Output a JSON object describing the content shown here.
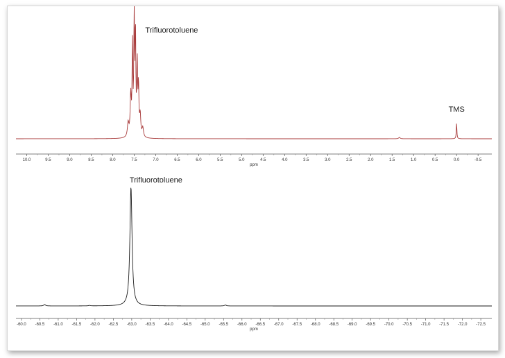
{
  "chart_data": [
    {
      "type": "line",
      "xlabel": "ppm",
      "xlim": [
        10.25,
        -0.82
      ],
      "x_reversed": true,
      "tick_labels": [
        "10.0",
        "9.5",
        "9.0",
        "8.5",
        "8.0",
        "7.5",
        "7.0",
        "6.5",
        "6.0",
        "5.5",
        "5.0",
        "4.5",
        "4.0",
        "3.5",
        "3.0",
        "2.5",
        "2.0",
        "1.5",
        "1.0",
        "0.5",
        "0.0",
        "-0.5"
      ],
      "line_color": "#a83a3a",
      "peaks": [
        {
          "x": 7.54,
          "height": 0.78,
          "width": 0.01
        },
        {
          "x": 7.5,
          "height": 1.0,
          "width": 0.01
        },
        {
          "x": 7.47,
          "height": 0.9,
          "width": 0.01
        },
        {
          "x": 7.43,
          "height": 0.62,
          "width": 0.01
        },
        {
          "x": 7.4,
          "height": 0.42,
          "width": 0.012
        },
        {
          "x": 7.58,
          "height": 0.35,
          "width": 0.015
        },
        {
          "x": 7.36,
          "height": 0.18,
          "width": 0.015
        },
        {
          "x": 7.64,
          "height": 0.12,
          "width": 0.02
        },
        {
          "x": 7.3,
          "height": 0.08,
          "width": 0.02
        },
        {
          "x": 1.33,
          "height": 0.012,
          "width": 0.02
        },
        {
          "x": 0.0,
          "height": 0.14,
          "width": 0.008
        }
      ],
      "annotations": [
        {
          "text": "Trifluorotoluene",
          "x": 7.5
        },
        {
          "text": "TMS",
          "x": 0.0
        }
      ]
    },
    {
      "type": "line",
      "xlabel": "ppm",
      "xlim": [
        -59.85,
        -72.8
      ],
      "x_reversed": true,
      "tick_labels": [
        "-60.0",
        "-60.5",
        "-61.0",
        "-61.5",
        "-62.0",
        "-62.5",
        "-63.0",
        "-63.5",
        "-64.0",
        "-64.5",
        "-65.0",
        "-65.5",
        "-66.0",
        "-66.5",
        "-67.0",
        "-67.5",
        "-68.0",
        "-68.5",
        "-69.0",
        "-69.5",
        "-70.0",
        "-70.5",
        "-71.0",
        "-71.5",
        "-72.0",
        "-72.5"
      ],
      "line_color": "#1a1a1a",
      "peaks": [
        {
          "x": -62.98,
          "height": 1.0,
          "width": 0.035
        },
        {
          "x": -60.63,
          "height": 0.012,
          "width": 0.03
        },
        {
          "x": -65.55,
          "height": 0.008,
          "width": 0.03
        },
        {
          "x": -61.85,
          "height": 0.004,
          "width": 0.03
        }
      ],
      "annotations": [
        {
          "text": "Trifluorotoluene",
          "x": -62.98
        }
      ]
    }
  ]
}
